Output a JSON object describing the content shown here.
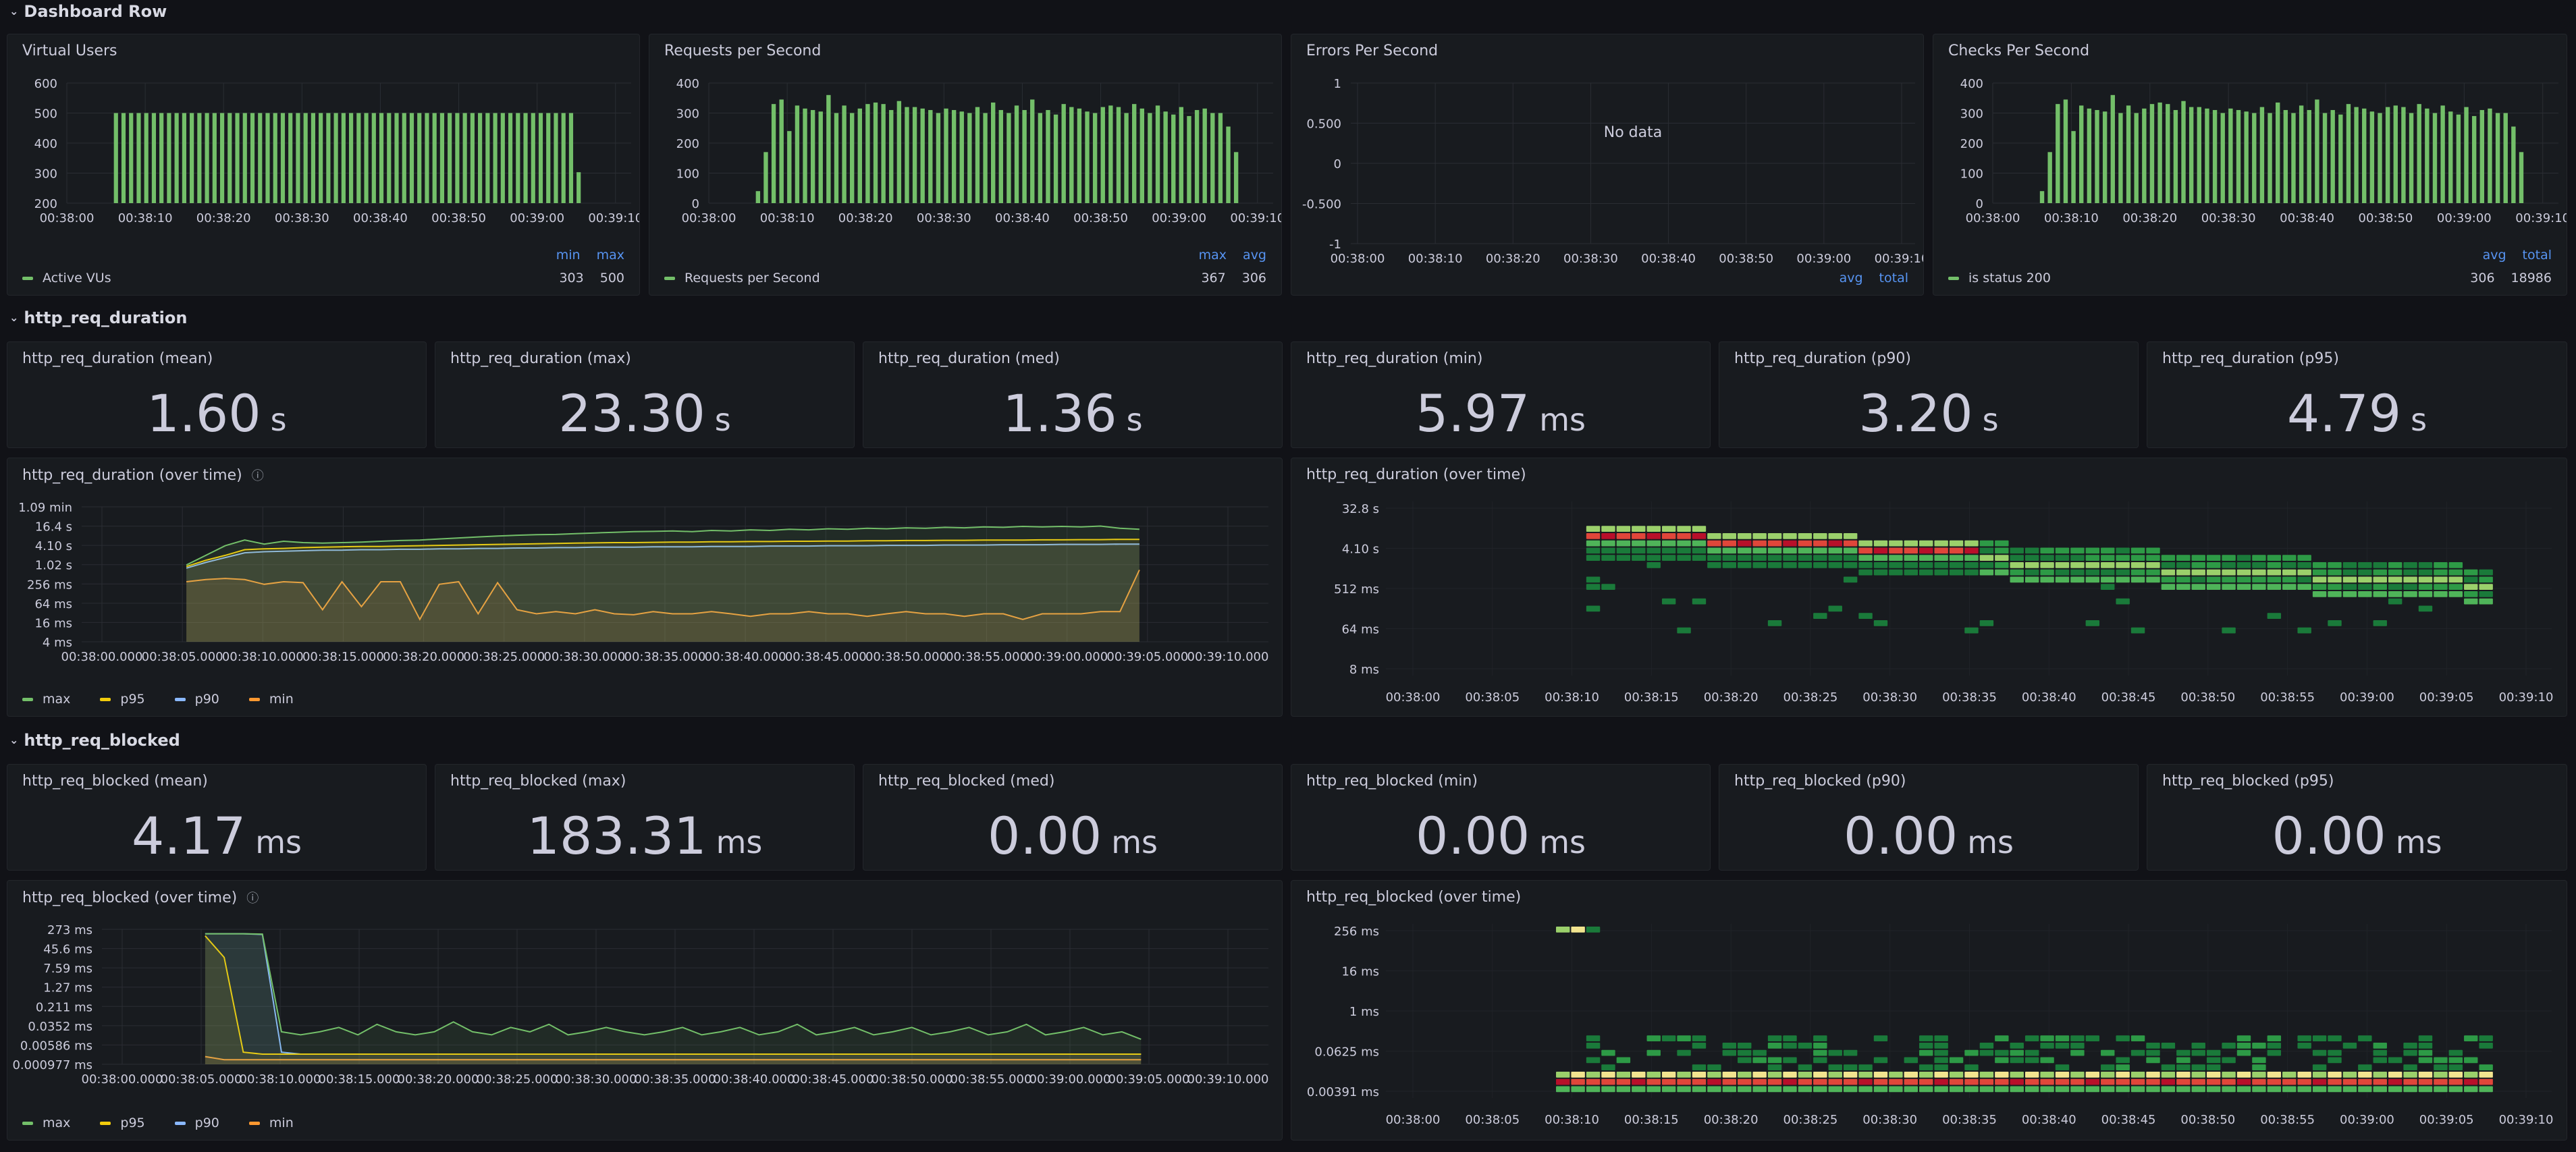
{
  "rows": {
    "dashboard": "Dashboard Row",
    "duration": "http_req_duration",
    "blocked": "http_req_blocked"
  },
  "colors": {
    "green": "#73bf69",
    "yellow": "#fade2a",
    "orange_p95": "#f2cc0c",
    "blue": "#8ab8ff",
    "orange": "#ff9830"
  },
  "top_panels": {
    "vus": {
      "title": "Virtual Users",
      "legend_headers": [
        "min",
        "max"
      ],
      "legend_name": "Active VUs",
      "legend_values": [
        "303",
        "500"
      ]
    },
    "rps": {
      "title": "Requests per Second",
      "legend_headers": [
        "max",
        "avg"
      ],
      "legend_name": "Requests per Second",
      "legend_values": [
        "367",
        "306"
      ]
    },
    "eps": {
      "title": "Errors Per Second",
      "no_data": "No data",
      "legend_headers": [
        "avg",
        "total"
      ]
    },
    "cps": {
      "title": "Checks Per Second",
      "legend_headers": [
        "avg",
        "total"
      ],
      "legend_name": "is status 200",
      "legend_values": [
        "306",
        "18986"
      ]
    }
  },
  "duration_stats": [
    {
      "title": "http_req_duration (mean)",
      "value": "1.60",
      "unit": "s"
    },
    {
      "title": "http_req_duration (max)",
      "value": "23.30",
      "unit": "s"
    },
    {
      "title": "http_req_duration (med)",
      "value": "1.36",
      "unit": "s"
    },
    {
      "title": "http_req_duration (min)",
      "value": "5.97",
      "unit": "ms"
    },
    {
      "title": "http_req_duration (p90)",
      "value": "3.20",
      "unit": "s"
    },
    {
      "title": "http_req_duration (p95)",
      "value": "4.79",
      "unit": "s"
    }
  ],
  "blocked_stats": [
    {
      "title": "http_req_blocked (mean)",
      "value": "4.17",
      "unit": "ms"
    },
    {
      "title": "http_req_blocked (max)",
      "value": "183.31",
      "unit": "ms"
    },
    {
      "title": "http_req_blocked (med)",
      "value": "0.00",
      "unit": "ms"
    },
    {
      "title": "http_req_blocked (min)",
      "value": "0.00",
      "unit": "ms"
    },
    {
      "title": "http_req_blocked (p90)",
      "value": "0.00",
      "unit": "ms"
    },
    {
      "title": "http_req_blocked (p95)",
      "value": "0.00",
      "unit": "ms"
    }
  ],
  "series_legend": [
    "max",
    "p95",
    "p90",
    "min"
  ],
  "duration_ts_title": "http_req_duration (over time)",
  "duration_hm_title": "http_req_duration (over time)",
  "blocked_ts_title": "http_req_blocked (over time)",
  "blocked_hm_title": "http_req_blocked (over time)",
  "chart_data": [
    {
      "id": "vus",
      "type": "bar",
      "title": "Virtual Users",
      "x_ticks": [
        "00:38:00",
        "00:38:10",
        "00:38:20",
        "00:38:30",
        "00:38:40",
        "00:38:50",
        "00:39:00",
        "00:39:10"
      ],
      "y_ticks": [
        "600",
        "500",
        "400",
        "300",
        "200"
      ],
      "ylim": [
        200,
        600
      ],
      "x_start": "00:38:00",
      "x_end": "00:39:12",
      "bar_start": "00:38:06",
      "bar_end": "00:39:06",
      "series": [
        {
          "name": "Active VUs",
          "values": [
            500,
            500,
            500,
            500,
            500,
            500,
            500,
            500,
            500,
            500,
            500,
            500,
            500,
            500,
            500,
            500,
            500,
            500,
            500,
            500,
            500,
            500,
            500,
            500,
            500,
            500,
            500,
            500,
            500,
            500,
            500,
            500,
            500,
            500,
            500,
            500,
            500,
            500,
            500,
            500,
            500,
            500,
            500,
            500,
            500,
            500,
            500,
            500,
            500,
            500,
            500,
            500,
            500,
            500,
            500,
            500,
            500,
            500,
            500,
            500,
            500,
            303
          ]
        }
      ]
    },
    {
      "id": "rps",
      "type": "bar",
      "title": "Requests per Second",
      "x_ticks": [
        "00:38:00",
        "00:38:10",
        "00:38:20",
        "00:38:30",
        "00:38:40",
        "00:38:50",
        "00:39:00",
        "00:39:10"
      ],
      "y_ticks": [
        "400",
        "300",
        "200",
        "100",
        "0"
      ],
      "ylim": [
        0,
        400
      ],
      "x_start": "00:38:00",
      "x_end": "00:39:12",
      "bar_start": "00:38:06",
      "bar_end": "00:39:08",
      "series": [
        {
          "name": "Requests per Second",
          "values": [
            40,
            170,
            330,
            345,
            240,
            325,
            315,
            310,
            305,
            360,
            300,
            325,
            300,
            315,
            330,
            335,
            330,
            310,
            340,
            320,
            320,
            315,
            310,
            300,
            315,
            310,
            305,
            300,
            320,
            300,
            335,
            310,
            300,
            325,
            310,
            345,
            300,
            310,
            295,
            330,
            320,
            315,
            305,
            300,
            320,
            325,
            320,
            300,
            330,
            315,
            300,
            325,
            305,
            295,
            320,
            290,
            310,
            315,
            300,
            300,
            255,
            170
          ]
        }
      ]
    },
    {
      "id": "eps",
      "type": "line",
      "title": "Errors Per Second",
      "x_ticks": [
        "00:38:00",
        "00:38:10",
        "00:38:20",
        "00:38:30",
        "00:38:40",
        "00:38:50",
        "00:39:00",
        "00:39:10"
      ],
      "y_ticks": [
        "1",
        "0.500",
        "0",
        "-0.500",
        "-1"
      ],
      "ylim": [
        -1,
        1
      ],
      "series": []
    },
    {
      "id": "cps",
      "type": "bar",
      "title": "Checks Per Second",
      "x_ticks": [
        "00:38:00",
        "00:38:10",
        "00:38:20",
        "00:38:30",
        "00:38:40",
        "00:38:50",
        "00:39:00",
        "00:39:10"
      ],
      "y_ticks": [
        "400",
        "300",
        "200",
        "100",
        "0"
      ],
      "ylim": [
        0,
        400
      ],
      "x_start": "00:38:00",
      "x_end": "00:39:12",
      "bar_start": "00:38:06",
      "bar_end": "00:39:08",
      "series": [
        {
          "name": "is status 200",
          "values": [
            40,
            170,
            330,
            345,
            240,
            325,
            315,
            310,
            305,
            360,
            300,
            325,
            300,
            315,
            330,
            335,
            330,
            310,
            340,
            320,
            320,
            315,
            310,
            300,
            315,
            310,
            305,
            300,
            320,
            300,
            335,
            310,
            300,
            325,
            310,
            345,
            300,
            310,
            295,
            330,
            320,
            315,
            305,
            300,
            320,
            325,
            320,
            300,
            330,
            315,
            300,
            325,
            305,
            295,
            320,
            290,
            310,
            315,
            300,
            300,
            255,
            170
          ]
        }
      ]
    },
    {
      "id": "duration_ts",
      "type": "area",
      "title": "http_req_duration (over time)",
      "y_scale": "log",
      "y_ticks": [
        "1.09 min",
        "16.4 s",
        "4.10 s",
        "1.02 s",
        "256 ms",
        "64 ms",
        "16 ms",
        "4 ms"
      ],
      "x_ticks": [
        "00:38:00.000",
        "00:38:05.000",
        "00:38:10.000",
        "00:38:15.000",
        "00:38:20.000",
        "00:38:25.000",
        "00:38:30.000",
        "00:38:35.000",
        "00:38:40.000",
        "00:38:45.000",
        "00:38:50.000",
        "00:38:55.000",
        "00:39:00.000",
        "00:39:05.000",
        "00:39:10.000"
      ],
      "series": [
        {
          "name": "max",
          "values": [
            1.0,
            2.0,
            4.0,
            6.0,
            4.5,
            5.5,
            5.0,
            4.8,
            5.0,
            5.2,
            5.5,
            5.8,
            6.0,
            6.5,
            7.0,
            7.5,
            8.0,
            8.5,
            8.8,
            9.0,
            9.5,
            10.0,
            10.5,
            11.0,
            11.2,
            11.5,
            11.0,
            12.0,
            11.5,
            12.5,
            12.0,
            13.0,
            12.5,
            13.5,
            13.0,
            14.0,
            13.5,
            14.5,
            14.0,
            15.0,
            14.5,
            15.5,
            15.0,
            16.0,
            15.5,
            16.0,
            15.5,
            16.4,
            14.0,
            13.0
          ]
        },
        {
          "name": "p95",
          "values": [
            0.9,
            1.4,
            2.0,
            3.0,
            3.2,
            3.3,
            3.5,
            3.6,
            3.7,
            3.8,
            3.8,
            3.9,
            4.0,
            4.1,
            4.2,
            4.3,
            4.4,
            4.5,
            4.6,
            4.7,
            4.8,
            4.9,
            5.0,
            5.0,
            5.1,
            5.2,
            5.2,
            5.3,
            5.3,
            5.4,
            5.4,
            5.5,
            5.5,
            5.6,
            5.6,
            5.7,
            5.7,
            5.8,
            5.8,
            5.9,
            5.9,
            6.0,
            6.0,
            6.0,
            6.1,
            6.1,
            6.2,
            6.2,
            6.3,
            6.3
          ]
        },
        {
          "name": "p90",
          "values": [
            0.8,
            1.2,
            1.7,
            2.4,
            2.6,
            2.7,
            2.8,
            2.9,
            2.9,
            3.0,
            3.0,
            3.1,
            3.1,
            3.2,
            3.2,
            3.3,
            3.3,
            3.4,
            3.4,
            3.5,
            3.5,
            3.6,
            3.6,
            3.6,
            3.7,
            3.7,
            3.7,
            3.8,
            3.8,
            3.8,
            3.9,
            3.9,
            3.9,
            4.0,
            4.0,
            4.0,
            4.1,
            4.1,
            4.1,
            4.2,
            4.2,
            4.2,
            4.3,
            4.3,
            4.3,
            4.4,
            4.4,
            4.4,
            4.5,
            4.5
          ]
        },
        {
          "name": "min",
          "values": [
            0.3,
            0.35,
            0.38,
            0.35,
            0.25,
            0.3,
            0.28,
            0.04,
            0.3,
            0.05,
            0.3,
            0.3,
            0.02,
            0.25,
            0.3,
            0.03,
            0.28,
            0.04,
            0.03,
            0.035,
            0.03,
            0.04,
            0.03,
            0.028,
            0.035,
            0.03,
            0.03,
            0.035,
            0.03,
            0.025,
            0.03,
            0.03,
            0.035,
            0.03,
            0.03,
            0.025,
            0.03,
            0.035,
            0.03,
            0.03,
            0.025,
            0.03,
            0.03,
            0.02,
            0.03,
            0.03,
            0.03,
            0.035,
            0.035,
            0.7
          ]
        }
      ]
    },
    {
      "id": "duration_hm",
      "type": "heatmap",
      "title": "http_req_duration (over time)",
      "y_ticks": [
        "32.8 s",
        "4.10 s",
        "512 ms",
        "64 ms",
        "8 ms"
      ],
      "x_ticks": [
        "00:38:00",
        "00:38:05",
        "00:38:10",
        "00:38:15",
        "00:38:20",
        "00:38:25",
        "00:38:30",
        "00:38:35",
        "00:38:40",
        "00:38:45",
        "00:38:50",
        "00:38:55",
        "00:39:00",
        "00:39:05",
        "00:39:10"
      ]
    },
    {
      "id": "blocked_ts",
      "type": "area",
      "title": "http_req_blocked (over time)",
      "y_scale": "log",
      "y_ticks": [
        "273 ms",
        "45.6 ms",
        "7.59 ms",
        "1.27 ms",
        "0.211 ms",
        "0.0352 ms",
        "0.00586 ms",
        "0.000977 ms"
      ],
      "x_ticks": [
        "00:38:00.000",
        "00:38:05.000",
        "00:38:10.000",
        "00:38:15.000",
        "00:38:20.000",
        "00:38:25.000",
        "00:38:30.000",
        "00:38:35.000",
        "00:38:40.000",
        "00:38:45.000",
        "00:38:50.000",
        "00:38:55.000",
        "00:39:00.000",
        "00:39:05.000",
        "00:39:10.000"
      ],
      "series": [
        {
          "name": "max",
          "values": [
            180,
            180,
            180,
            175,
            0.02,
            0.015,
            0.02,
            0.03,
            0.015,
            0.04,
            0.02,
            0.015,
            0.02,
            0.05,
            0.02,
            0.015,
            0.03,
            0.02,
            0.04,
            0.015,
            0.02,
            0.03,
            0.02,
            0.015,
            0.02,
            0.03,
            0.015,
            0.02,
            0.03,
            0.015,
            0.02,
            0.04,
            0.015,
            0.02,
            0.03,
            0.015,
            0.02,
            0.03,
            0.015,
            0.02,
            0.03,
            0.015,
            0.02,
            0.04,
            0.015,
            0.02,
            0.03,
            0.015,
            0.02,
            0.01
          ]
        },
        {
          "name": "p95",
          "values": [
            150,
            20,
            0.003,
            0.0025,
            0.0025,
            0.0025,
            0.0025,
            0.0025,
            0.0025,
            0.0025,
            0.0025,
            0.0025,
            0.0025,
            0.0025,
            0.0025,
            0.0025,
            0.0025,
            0.0025,
            0.0025,
            0.0025,
            0.0025,
            0.0025,
            0.0025,
            0.0025,
            0.0025,
            0.0025,
            0.0025,
            0.0025,
            0.0025,
            0.0025,
            0.0025,
            0.0025,
            0.0025,
            0.0025,
            0.0025,
            0.0025,
            0.0025,
            0.0025,
            0.0025,
            0.0025,
            0.0025,
            0.0025,
            0.0025,
            0.0025,
            0.0025,
            0.0025,
            0.0025,
            0.0025,
            0.0025,
            0.0025
          ]
        },
        {
          "name": "p90",
          "values": [
            180,
            180,
            180,
            170,
            0.003,
            0.0025,
            0.0025,
            0.0025,
            0.0025,
            0.0025,
            0.0025,
            0.0025,
            0.0025,
            0.0025,
            0.0025,
            0.0025,
            0.0025,
            0.0025,
            0.0025,
            0.0025,
            0.0025,
            0.0025,
            0.0025,
            0.0025,
            0.0025,
            0.0025,
            0.0025,
            0.0025,
            0.0025,
            0.0025,
            0.0025,
            0.0025,
            0.0025,
            0.0025,
            0.0025,
            0.0025,
            0.0025,
            0.0025,
            0.0025,
            0.0025,
            0.0025,
            0.0025,
            0.0025,
            0.0025,
            0.0025,
            0.0025,
            0.0025,
            0.0025,
            0.0025,
            0.0025
          ]
        },
        {
          "name": "min",
          "values": [
            0.002,
            0.0015,
            0.0015,
            0.0015,
            0.0015,
            0.0015,
            0.0015,
            0.0015,
            0.0015,
            0.0015,
            0.0015,
            0.0015,
            0.0015,
            0.0015,
            0.0015,
            0.0015,
            0.0015,
            0.0015,
            0.0015,
            0.0015,
            0.0015,
            0.0015,
            0.0015,
            0.0015,
            0.0015,
            0.0015,
            0.0015,
            0.0015,
            0.0015,
            0.0015,
            0.0015,
            0.0015,
            0.0015,
            0.0015,
            0.0015,
            0.0015,
            0.0015,
            0.0015,
            0.0015,
            0.0015,
            0.0015,
            0.0015,
            0.0015,
            0.0015,
            0.0015,
            0.0015,
            0.0015,
            0.0015,
            0.0015,
            0.0015
          ]
        }
      ]
    },
    {
      "id": "blocked_hm",
      "type": "heatmap",
      "title": "http_req_blocked (over time)",
      "y_ticks": [
        "256 ms",
        "16 ms",
        "1 ms",
        "0.0625 ms",
        "0.00391 ms"
      ],
      "x_ticks": [
        "00:38:00",
        "00:38:05",
        "00:38:10",
        "00:38:15",
        "00:38:20",
        "00:38:25",
        "00:38:30",
        "00:38:35",
        "00:38:40",
        "00:38:45",
        "00:38:50",
        "00:38:55",
        "00:39:00",
        "00:39:05",
        "00:39:10"
      ]
    }
  ]
}
